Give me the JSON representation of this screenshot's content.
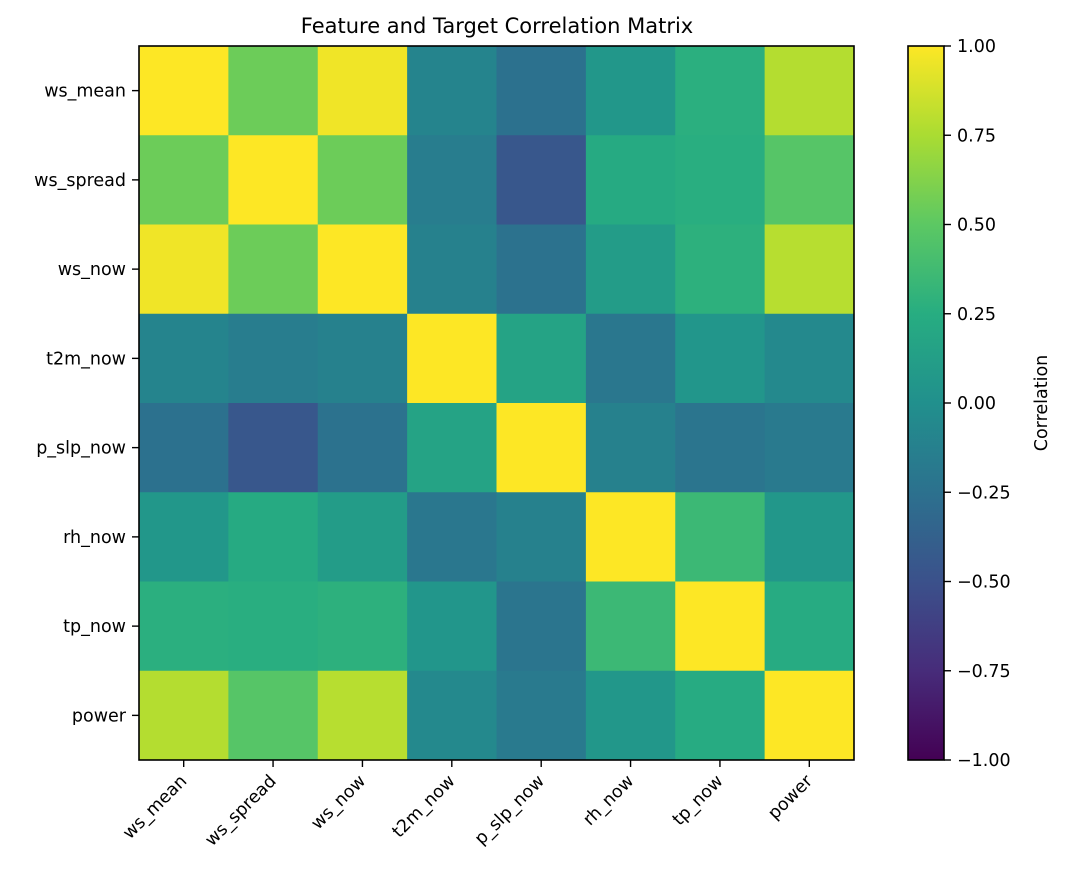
{
  "chart_data": {
    "type": "heatmap",
    "title": "Feature and Target Correlation Matrix",
    "rows": [
      "ws_mean",
      "ws_spread",
      "ws_now",
      "t2m_now",
      "p_slp_now",
      "rh_now",
      "tp_now",
      "power"
    ],
    "columns": [
      "ws_mean",
      "ws_spread",
      "ws_now",
      "t2m_now",
      "p_slp_now",
      "rh_now",
      "tp_now",
      "power"
    ],
    "values": [
      [
        1.0,
        0.55,
        0.96,
        -0.1,
        -0.25,
        0.06,
        0.27,
        0.78
      ],
      [
        0.55,
        1.0,
        0.55,
        -0.15,
        -0.45,
        0.22,
        0.26,
        0.47
      ],
      [
        0.96,
        0.55,
        1.0,
        -0.12,
        -0.24,
        0.1,
        0.28,
        0.79
      ],
      [
        -0.1,
        -0.15,
        -0.12,
        1.0,
        0.16,
        -0.2,
        0.05,
        -0.06
      ],
      [
        -0.25,
        -0.45,
        -0.24,
        0.16,
        1.0,
        -0.12,
        -0.22,
        -0.18
      ],
      [
        0.06,
        0.22,
        0.1,
        -0.2,
        -0.12,
        1.0,
        0.35,
        0.06
      ],
      [
        0.27,
        0.26,
        0.28,
        0.05,
        -0.22,
        0.35,
        1.0,
        0.23
      ],
      [
        0.78,
        0.47,
        0.79,
        -0.06,
        -0.18,
        0.06,
        0.23,
        1.0
      ]
    ],
    "colormap": "viridis",
    "vmin": -1.0,
    "vmax": 1.0,
    "colorbar": {
      "label": "Correlation",
      "ticks": [
        1.0,
        0.75,
        0.5,
        0.25,
        0.0,
        -0.25,
        -0.5,
        -0.75,
        -1.0
      ],
      "tick_labels": [
        "1.00",
        "0.75",
        "0.50",
        "0.25",
        "0.00",
        "−0.25",
        "−0.50",
        "−0.75",
        "−1.00"
      ]
    },
    "grid": false
  }
}
